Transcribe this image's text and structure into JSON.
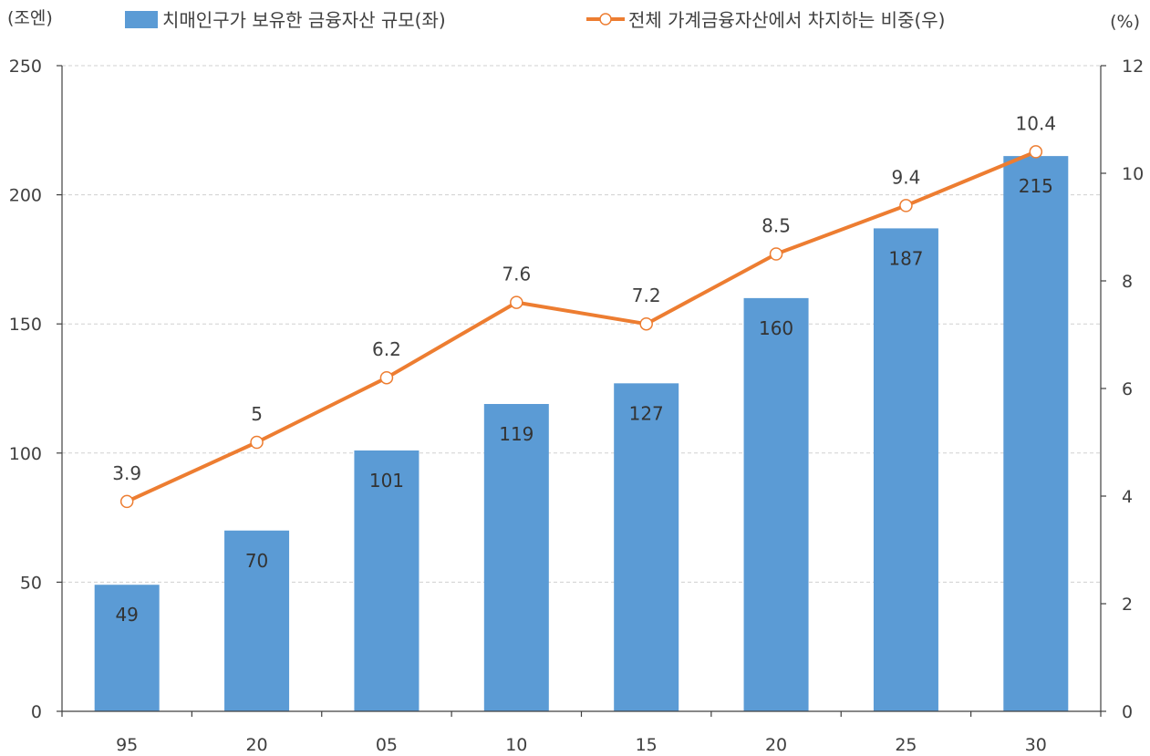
{
  "chart_data": {
    "type": "bar+line",
    "title": "",
    "categories": [
      "95",
      "20",
      "05",
      "10",
      "15",
      "20",
      "25",
      "30"
    ],
    "series": [
      {
        "name": "치매인구가 보유한 금융자산 규모(좌)",
        "type": "bar",
        "axis": "left",
        "values": [
          49,
          70,
          101,
          119,
          127,
          160,
          187,
          215
        ]
      },
      {
        "name": "전체 가계금융자산에서 차지하는 비중(우)",
        "type": "line",
        "axis": "right",
        "values": [
          3.9,
          5,
          6.2,
          7.6,
          7.2,
          8.5,
          9.4,
          10.4
        ]
      }
    ],
    "y_left": {
      "unit": "(조엔)",
      "min": 0,
      "max": 250,
      "ticks": [
        0,
        50,
        100,
        150,
        200,
        250
      ]
    },
    "y_right": {
      "unit": "(%)",
      "min": 0,
      "max": 12,
      "ticks": [
        0,
        2,
        4,
        6,
        8,
        10,
        12
      ]
    },
    "grid": true,
    "legend": "top",
    "colors": {
      "bar": "#5b9bd5",
      "line": "#ed7d31",
      "grid": "#d0d0d0",
      "axis": "#404040"
    }
  }
}
